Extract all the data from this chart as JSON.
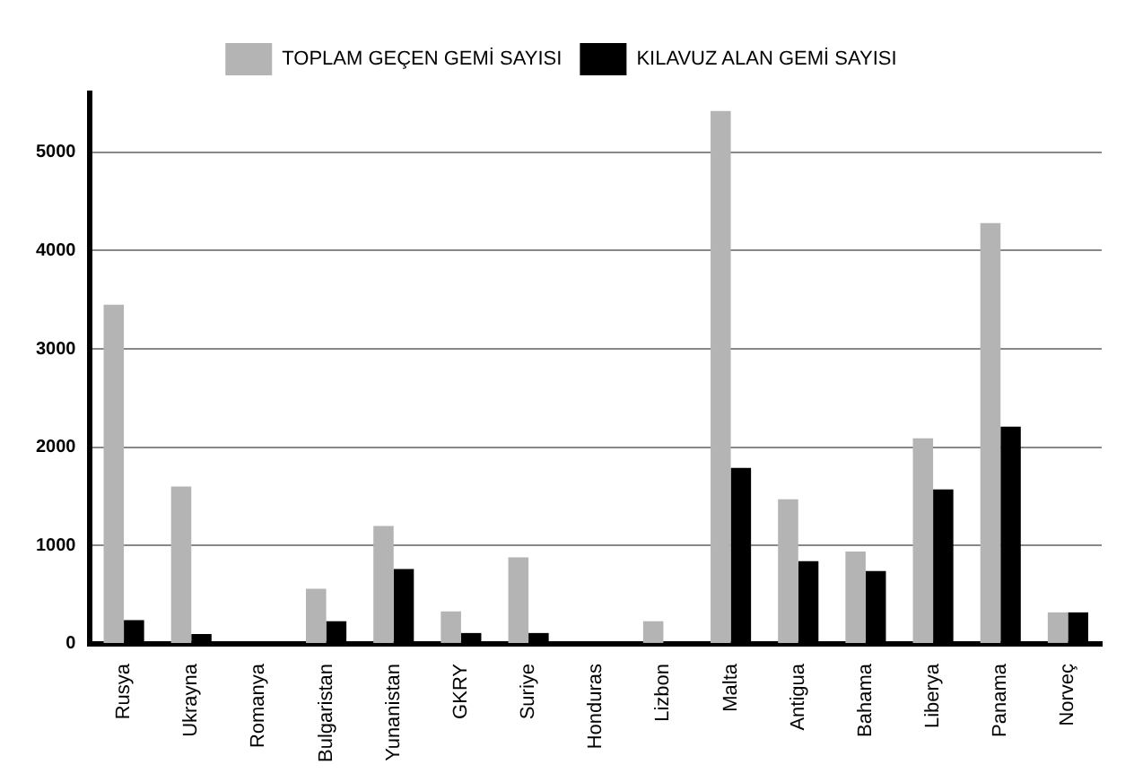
{
  "chart_data": {
    "type": "bar",
    "categories": [
      "Rusya",
      "Ukrayna",
      "Romanya",
      "Bulgaristan",
      "Yunanistan",
      "GKRY",
      "Suriye",
      "Honduras",
      "Lizbon",
      "Malta",
      "Antigua",
      "Bahama",
      "Liberya",
      "Panama",
      "Norveç"
    ],
    "series": [
      {
        "name": "TOPLAM GEÇEN GEMİ SAYISI",
        "color": "#b4b4b4",
        "values": [
          3450,
          1600,
          null,
          560,
          1200,
          330,
          880,
          null,
          230,
          5420,
          1470,
          940,
          2090,
          4280,
          320
        ]
      },
      {
        "name": "KILAVUZ ALAN GEMİ SAYISI",
        "color": "#000000",
        "values": [
          240,
          100,
          null,
          230,
          760,
          110,
          110,
          null,
          null,
          1790,
          840,
          740,
          1570,
          2210,
          320
        ]
      }
    ],
    "ylim": [
      0,
      5600
    ],
    "yticks": [
      0,
      1000,
      2000,
      3000,
      4000,
      5000
    ],
    "grid": "y",
    "legend": "top"
  }
}
